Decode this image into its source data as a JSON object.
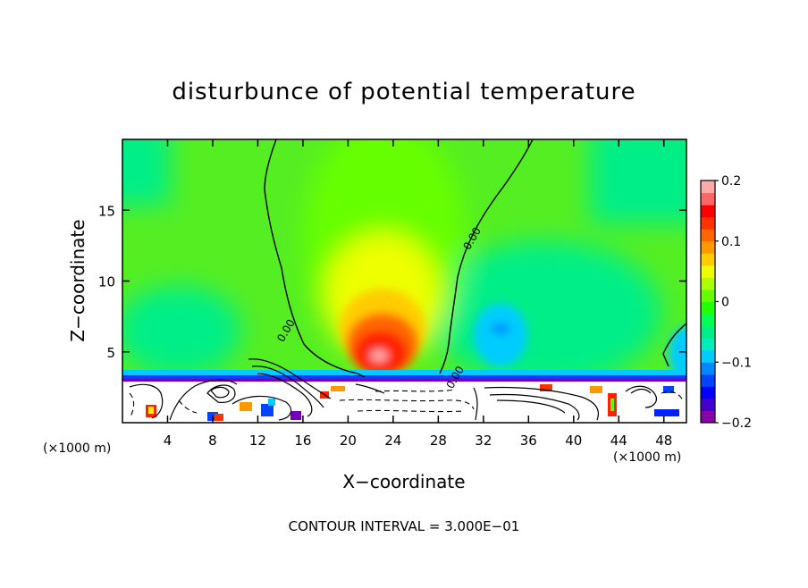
{
  "chart_data": {
    "type": "heatmap",
    "title": "disturbunce of potential temperature",
    "xlabel": "X−coordinate",
    "ylabel": "Z−coordinate",
    "x_unit_left": "(×1000 m)",
    "x_unit_right": "(×1000 m)",
    "footer": "CONTOUR INTERVAL = 3.000E−01",
    "xlim": [
      0,
      50
    ],
    "ylim": [
      0,
      20
    ],
    "x_ticks": [
      {
        "value": 4,
        "label": "4"
      },
      {
        "value": 8,
        "label": "8"
      },
      {
        "value": 12,
        "label": "12"
      },
      {
        "value": 16,
        "label": "16"
      },
      {
        "value": 20,
        "label": "20"
      },
      {
        "value": 24,
        "label": "24"
      },
      {
        "value": 28,
        "label": "28"
      },
      {
        "value": 32,
        "label": "32"
      },
      {
        "value": 36,
        "label": "36"
      },
      {
        "value": 40,
        "label": "40"
      },
      {
        "value": 44,
        "label": "44"
      },
      {
        "value": 48,
        "label": "48"
      }
    ],
    "y_ticks": [
      {
        "value": 5,
        "label": "5"
      },
      {
        "value": 10,
        "label": "10"
      },
      {
        "value": 15,
        "label": "15"
      }
    ],
    "colorbar": {
      "range": [
        -0.2,
        0.2
      ],
      "ticks": [
        {
          "value": 0.2,
          "label": "0.2"
        },
        {
          "value": 0.1,
          "label": "0.1"
        },
        {
          "value": 0,
          "label": "0"
        },
        {
          "value": -0.1,
          "label": "−0.1"
        },
        {
          "value": -0.2,
          "label": "−0.2"
        }
      ],
      "colors": [
        "#8800aa",
        "#4400cc",
        "#0000ff",
        "#0044ff",
        "#0088ff",
        "#00ccff",
        "#00eebb",
        "#00ee88",
        "#00ff55",
        "#22ff00",
        "#66ff00",
        "#aaff00",
        "#eeff00",
        "#ffcc00",
        "#ff9900",
        "#ff6600",
        "#ff3300",
        "#ff0000",
        "#ff6666",
        "#ffaaaa"
      ]
    },
    "contour_labels": [
      {
        "x": 14.5,
        "y": 6.5,
        "text": "0.00"
      },
      {
        "x": 31,
        "y": 13,
        "text": "0.00"
      },
      {
        "x": 29.5,
        "y": 3.2,
        "text": "0.00"
      }
    ],
    "features": [
      {
        "name": "warm-core",
        "x": 23,
        "y": 5,
        "peak": 0.2
      },
      {
        "name": "cool-anomaly",
        "x": 32.5,
        "y": 6.5,
        "peak": -0.07
      }
    ]
  }
}
